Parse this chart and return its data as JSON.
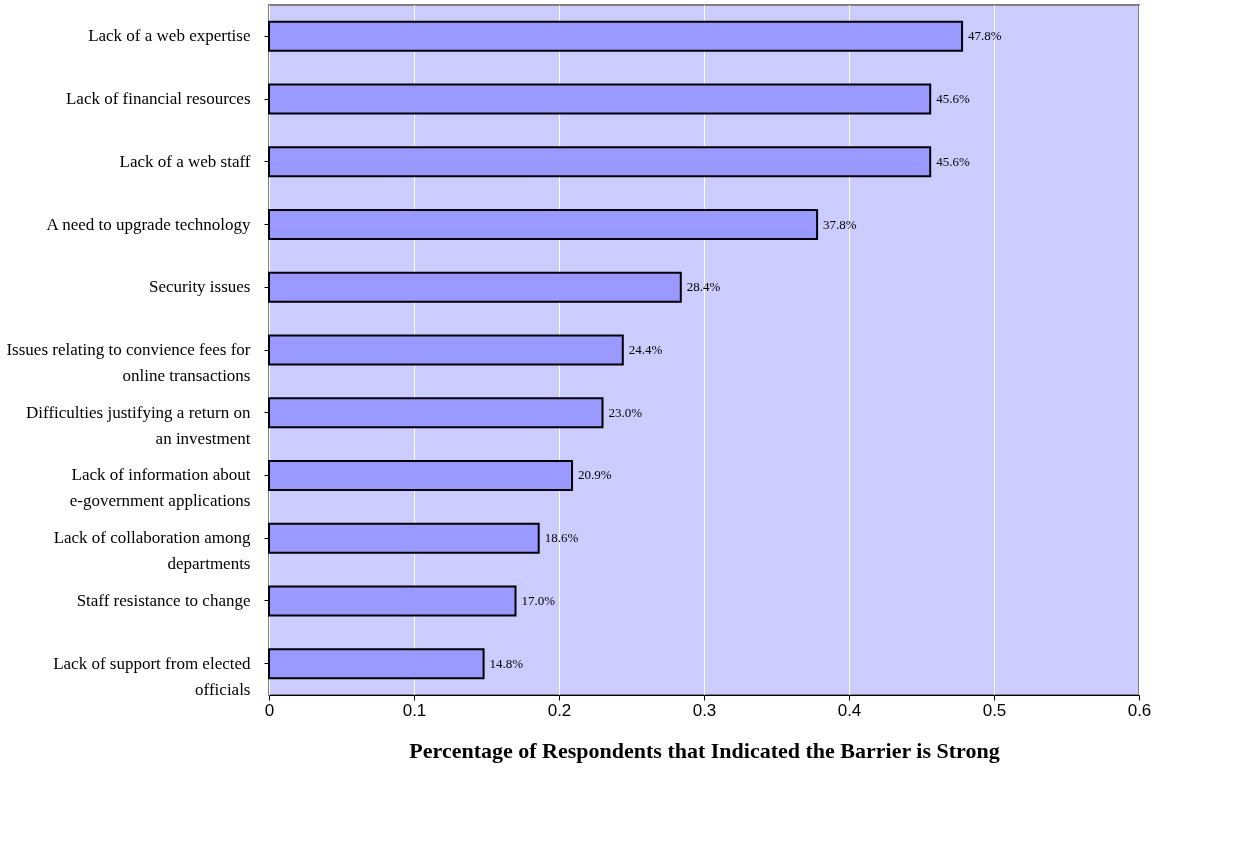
{
  "chart_data": {
    "type": "bar",
    "orientation": "horizontal",
    "xlabel": "Percentage of Respondents that Indicated the Barrier is Strong",
    "categories": [
      "Lack of a web expertise",
      "Lack of financial resources",
      "Lack of a web staff",
      "A need to upgrade technology",
      "Security issues",
      "Issues relating to convience fees for online transactions",
      "Difficulties justifying a return on an investment",
      "Lack of information about e-government applications",
      "Lack of collaboration among departments",
      "Staff resistance to change",
      "Lack of support from elected officials"
    ],
    "values": [
      0.478,
      0.456,
      0.456,
      0.378,
      0.284,
      0.244,
      0.23,
      0.209,
      0.186,
      0.17,
      0.148
    ],
    "value_labels": [
      "47.8%",
      "45.6%",
      "45.6%",
      "37.8%",
      "28.4%",
      "24.4%",
      "23.0%",
      "20.9%",
      "18.6%",
      "17.0%",
      "14.8%"
    ],
    "color": "#9999ff",
    "xlim": [
      0,
      0.6
    ],
    "xticks": [
      0,
      0.1,
      0.2,
      0.3,
      0.4,
      0.5,
      0.6
    ],
    "grid": "x"
  }
}
